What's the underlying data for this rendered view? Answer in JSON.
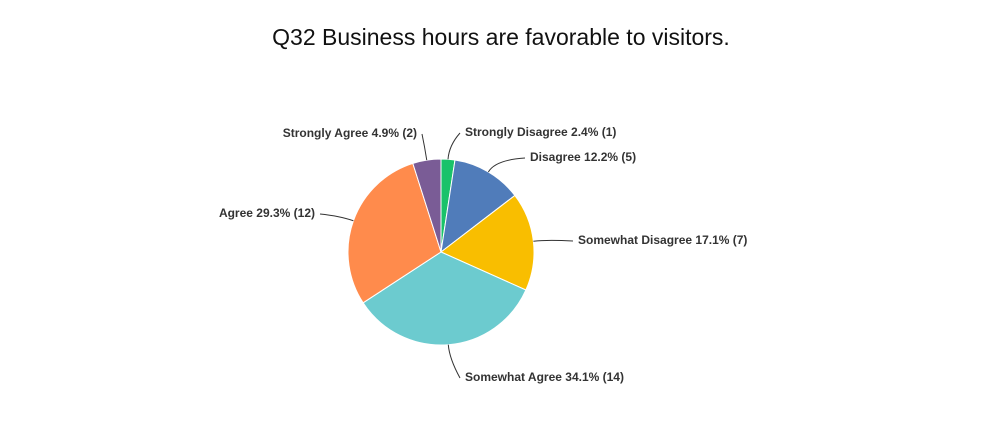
{
  "chart_data": {
    "type": "pie",
    "title": "Q32 Business hours are favorable to visitors.",
    "categories": [
      "Strongly Disagree",
      "Disagree",
      "Somewhat Disagree",
      "Somewhat Agree",
      "Agree",
      "Strongly Agree"
    ],
    "values": [
      2.4,
      12.2,
      17.1,
      34.1,
      29.3,
      4.9
    ],
    "value_labels": [
      "2.4% (1)",
      "12.2% (5)",
      "17.1% (7)",
      "34.1% (14)",
      "29.3% (12)",
      "4.9% (2)"
    ],
    "colors": [
      "#19c26a",
      "#507cba",
      "#f9be00",
      "#6ccbcf",
      "#ff8b4c",
      "#7a5c96"
    ]
  }
}
